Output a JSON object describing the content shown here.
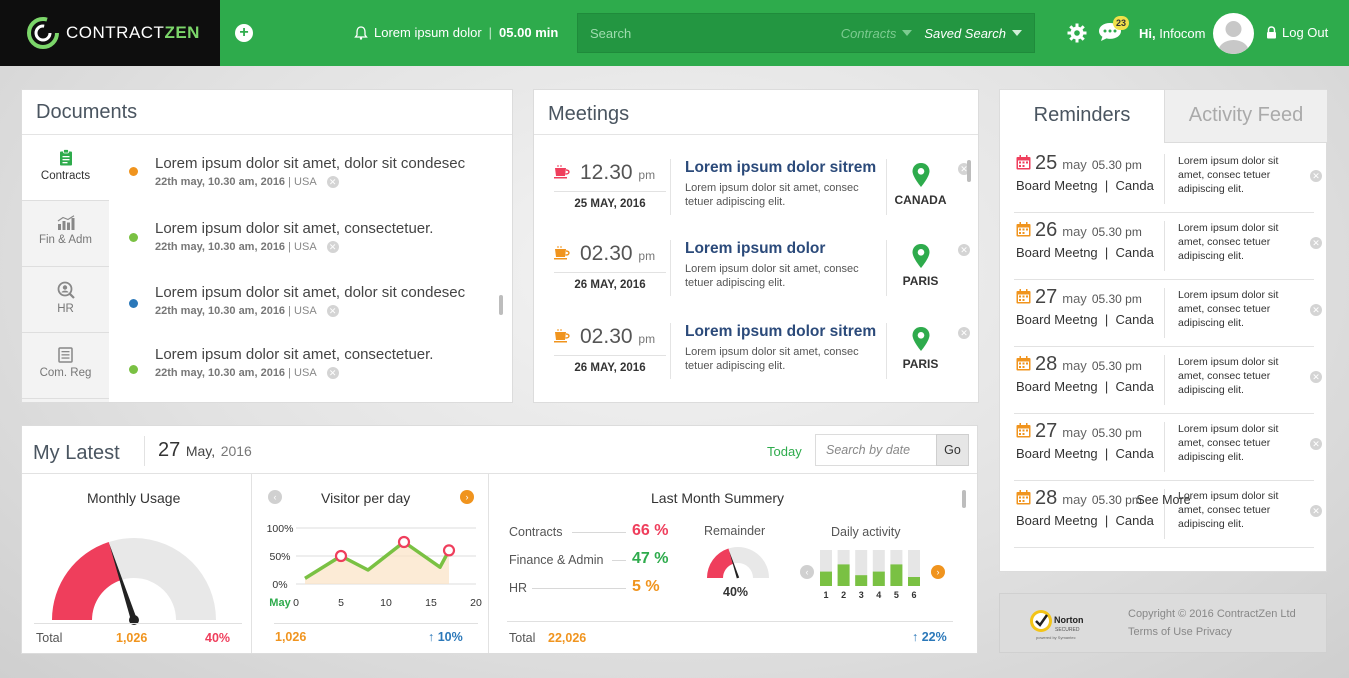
{
  "header": {
    "logo_text": "CONTRACT",
    "logo_text_bold": "ZEN",
    "timer_label": "Lorem ipsum dolor",
    "timer_value": "05.00 min",
    "search_placeholder": "Search",
    "search_category": "Contracts",
    "saved_search_label": "Saved Search",
    "notification_count": "23",
    "greeting": "Hi,",
    "user_name": "Infocom",
    "logout_label": "Log Out",
    "accent": "#2eab4c"
  },
  "documents": {
    "title": "Documents",
    "tabs": [
      {
        "label": "Contracts",
        "icon": "clipboard-icon"
      },
      {
        "label": "Fin & Adm",
        "icon": "bar-chart-icon"
      },
      {
        "label": "HR",
        "icon": "person-search-icon"
      },
      {
        "label": "Com. Reg",
        "icon": "register-icon"
      }
    ],
    "items": [
      {
        "text": "Lorem ipsum dolor sit amet, dolor sit condesec",
        "meta": "22th may, 10.30 am, 2016",
        "location": "USA",
        "dot": "#f0941e"
      },
      {
        "text": "Lorem ipsum dolor sit amet, consectetuer.",
        "meta": "22th may, 10.30 am, 2016",
        "location": "USA",
        "dot": "#7ac143"
      },
      {
        "text": "Lorem ipsum dolor sit amet, dolor sit condesec",
        "meta": "22th may, 10.30 am, 2016",
        "location": "USA",
        "dot": "#2b78b9"
      },
      {
        "text": "Lorem ipsum dolor sit amet, consectetuer.",
        "meta": "22th may, 10.30 am, 2016",
        "location": "USA",
        "dot": "#7ac143"
      }
    ]
  },
  "meetings": {
    "title": "Meetings",
    "items": [
      {
        "time": "12.30",
        "ampm": "pm",
        "date": "25 MAY, 2016",
        "heading": "Lorem ipsum dolor sitrem",
        "desc1": "Lorem ipsum dolor sit amet, consec",
        "desc2": "tetuer adipiscing elit.",
        "location": "CANADA",
        "cup": "#ef3e5c"
      },
      {
        "time": "02.30",
        "ampm": "pm",
        "date": "26 MAY, 2016",
        "heading": "Lorem ipsum dolor",
        "desc1": "Lorem ipsum dolor sit amet, consec",
        "desc2": "tetuer adipiscing elit.",
        "location": "PARIS",
        "cup": "#f0941e"
      },
      {
        "time": "02.30",
        "ampm": "pm",
        "date": "26 MAY, 2016",
        "heading": "Lorem ipsum dolor sitrem",
        "desc1": "Lorem ipsum dolor sit amet, consec",
        "desc2": "tetuer adipiscing elit.",
        "location": "PARIS",
        "cup": "#f0941e"
      }
    ]
  },
  "reminders": {
    "tab_active": "Reminders",
    "tab_inactive": "Activity Feed",
    "items": [
      {
        "day": "25",
        "month": "may",
        "time": "05.30 pm",
        "event": "Board Meetng",
        "place": "Canda",
        "note1": "Lorem ipsum dolor sit",
        "note2": "amet, consec tetuer",
        "note3": "adipiscing elit.",
        "cal": "#ef3e5c"
      },
      {
        "day": "26",
        "month": "may",
        "time": "05.30 pm",
        "event": "Board Meetng",
        "place": "Canda",
        "note1": "Lorem ipsum dolor sit",
        "note2": "amet, consec tetuer",
        "note3": "adipiscing elit.",
        "cal": "#f0941e"
      },
      {
        "day": "27",
        "month": "may",
        "time": "05.30 pm",
        "event": "Board Meetng",
        "place": "Canda",
        "note1": "Lorem ipsum dolor sit",
        "note2": "amet, consec tetuer",
        "note3": "adipiscing elit.",
        "cal": "#f0941e"
      },
      {
        "day": "28",
        "month": "may",
        "time": "05.30 pm",
        "event": "Board Meetng",
        "place": "Canda",
        "note1": "Lorem ipsum dolor sit",
        "note2": "amet, consec tetuer",
        "note3": "adipiscing elit.",
        "cal": "#f0941e"
      },
      {
        "day": "27",
        "month": "may",
        "time": "05.30 pm",
        "event": "Board Meetng",
        "place": "Canda",
        "note1": "Lorem ipsum dolor sit",
        "note2": "amet, consec tetuer",
        "note3": "adipiscing elit.",
        "cal": "#f0941e"
      },
      {
        "day": "28",
        "month": "may",
        "time": "05.30 pm",
        "event": "Board Meetng",
        "place": "Canda",
        "note1": "Lorem ipsum dolor sit",
        "note2": "amet, consec tetuer",
        "note3": "adipiscing elit.",
        "cal": "#f0941e"
      }
    ],
    "see_more": "See More"
  },
  "footer": {
    "norton_text": "Norton",
    "norton_secured": "SECURED",
    "norton_powered": "powered by Symantec",
    "copyright": "Copyright © 2016 ContractZen Ltd",
    "links": "Terms of Use Privacy"
  },
  "my_latest": {
    "title": "My Latest",
    "day": "27",
    "month": "May,",
    "year": "2016",
    "today_label": "Today",
    "search_placeholder": "Search by date",
    "go_label": "Go",
    "monthly_usage": {
      "title": "Monthly Usage",
      "total_label": "Total",
      "total_value": "1,026",
      "percent_label": "40%",
      "gauge_fraction": 0.4
    },
    "visitor": {
      "title": "Visitor per day",
      "total_value": "1,026",
      "change": "↑ 10%"
    },
    "summary": {
      "title": "Last Month Summery",
      "rows": [
        {
          "label": "Contracts",
          "value": "66 %",
          "color": "#ef3e5c"
        },
        {
          "label": "Finance & Admin",
          "value": "47 %",
          "color": "#2eab4c"
        },
        {
          "label": "HR",
          "value": "5 %",
          "color": "#f0941e"
        }
      ],
      "remainder_title": "Remainder",
      "remainder_value": "40%",
      "remainder_fraction": 0.4,
      "daily_title": "Daily activity",
      "total_label": "Total",
      "total_value": "22,026",
      "change": "↑ 22%"
    }
  },
  "chart_data": [
    {
      "type": "line",
      "title": "Visitor per day",
      "x": [
        1,
        5,
        8,
        12,
        16,
        17
      ],
      "y": [
        10,
        50,
        25,
        75,
        30,
        60
      ],
      "markers_at": [
        5,
        12,
        17
      ],
      "xticks": [
        "0",
        "5",
        "10",
        "15",
        "20"
      ],
      "xlabel": "May",
      "yticks": [
        "0%",
        "50%",
        "100%"
      ],
      "xlim": [
        0,
        20
      ],
      "ylim": [
        0,
        100
      ],
      "line_color": "#7ac143",
      "marker_color": "#ef3e5c"
    },
    {
      "type": "bar",
      "title": "Daily activity",
      "categories": [
        "1",
        "2",
        "3",
        "4",
        "5",
        "6"
      ],
      "values": [
        40,
        60,
        30,
        40,
        60,
        25
      ],
      "ylim": [
        0,
        100
      ],
      "bar_color": "#7ac143",
      "track_color": "#e6e6e6"
    }
  ]
}
